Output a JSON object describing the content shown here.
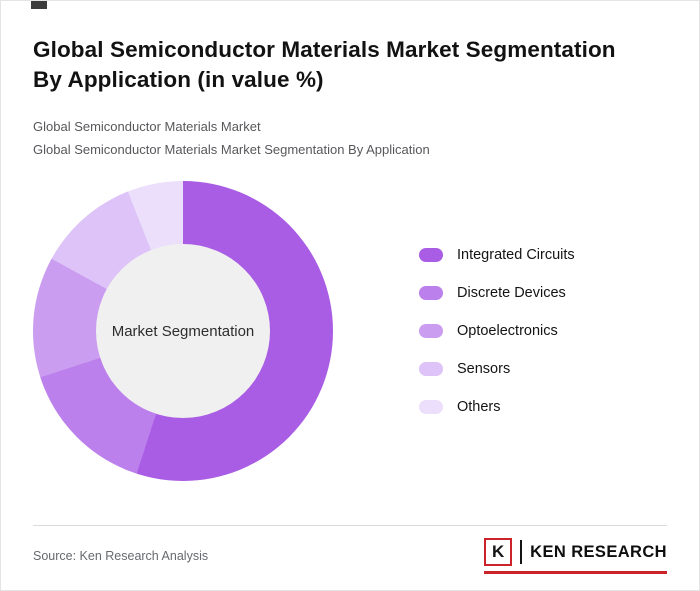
{
  "page": {
    "title_line1": "Global Semiconductor Materials Market Segmentation",
    "title_line2": "By Application (in value %)",
    "subtitle1": "Global Semiconductor Materials Market",
    "subtitle2": "Global Semiconductor Materials Market Segmentation By Application",
    "source": "Source: Ken Research Analysis"
  },
  "logo": {
    "k_letter": "K",
    "text": "KEN RESEARCH",
    "accent_color": "#cc2229"
  },
  "chart_data": {
    "type": "pie",
    "donut": true,
    "title": "Global Semiconductor Materials Market Segmentation By Application (in value %)",
    "center_label": "Market Segmentation",
    "start_angle_deg": 0,
    "direction": "clockwise",
    "legend_position": "right",
    "categories": [
      "Integrated Circuits",
      "Discrete Devices",
      "Optoelectronics",
      "Sensors",
      "Others"
    ],
    "values": [
      55,
      15,
      13,
      11,
      6
    ],
    "colors": [
      "#a95ce4",
      "#bb80ec",
      "#cb9df1",
      "#ddc3f7",
      "#ecdffb"
    ],
    "hole_color": "#f0f0f0"
  }
}
